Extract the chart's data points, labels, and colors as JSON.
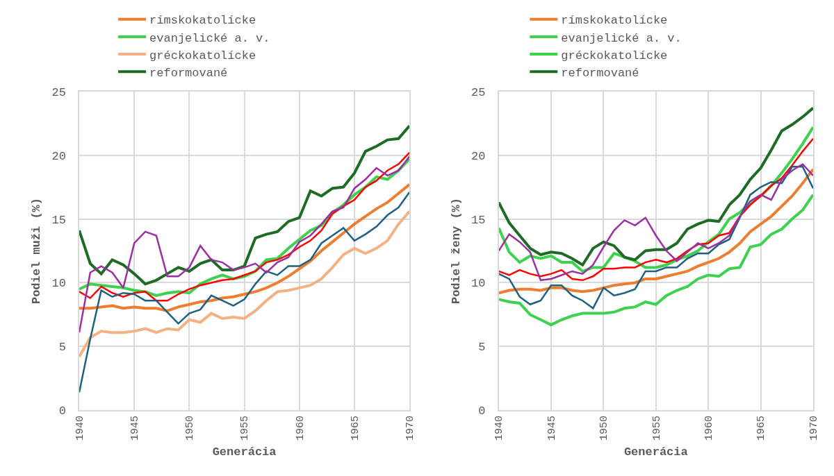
{
  "chart_data": [
    {
      "type": "line",
      "xlabel": "Generácia",
      "ylabel": "Podiel muži (%)",
      "xlim": [
        1940,
        1970
      ],
      "xticks": [
        1940,
        1945,
        1950,
        1955,
        1960,
        1965,
        1970
      ],
      "ylim": [
        0,
        25
      ],
      "yticks": [
        0,
        5,
        10,
        15,
        20,
        25
      ],
      "grid": true,
      "legend": "top",
      "x": [
        1940,
        1941,
        1942,
        1943,
        1944,
        1945,
        1946,
        1947,
        1948,
        1949,
        1950,
        1951,
        1952,
        1953,
        1954,
        1955,
        1956,
        1957,
        1958,
        1959,
        1960,
        1961,
        1962,
        1963,
        1964,
        1965,
        1966,
        1967,
        1968,
        1969,
        1970
      ],
      "series": [
        {
          "name": "rímskokatolícke",
          "color": "#ed7d31",
          "values": [
            8.0,
            8.0,
            8.1,
            8.2,
            8.0,
            8.1,
            8.0,
            8.0,
            7.8,
            8.1,
            8.3,
            8.5,
            8.6,
            8.8,
            8.9,
            9.1,
            9.3,
            9.6,
            10.0,
            10.5,
            11.1,
            11.7,
            12.5,
            13.2,
            13.9,
            14.6,
            15.2,
            15.8,
            16.3,
            17.0,
            17.7
          ]
        },
        {
          "name": "evanjelické a. v.",
          "color": "#3ed14f",
          "values": [
            9.5,
            9.9,
            9.8,
            9.7,
            9.6,
            9.4,
            9.3,
            9.0,
            9.2,
            9.3,
            9.2,
            9.9,
            10.3,
            10.6,
            10.3,
            10.5,
            10.9,
            11.8,
            11.9,
            12.7,
            13.4,
            14.1,
            14.5,
            15.5,
            16.1,
            16.9,
            17.5,
            18.3,
            18.1,
            18.8,
            19.7
          ]
        },
        {
          "name": "gréckokatolícke",
          "color": "#f4b183",
          "values": [
            4.2,
            5.7,
            6.2,
            6.1,
            6.1,
            6.2,
            6.4,
            6.1,
            6.4,
            6.3,
            7.1,
            6.9,
            7.6,
            7.2,
            7.3,
            7.2,
            7.8,
            8.6,
            9.3,
            9.4,
            9.6,
            9.8,
            10.3,
            11.2,
            12.2,
            12.7,
            12.3,
            12.7,
            13.3,
            14.6,
            15.6
          ]
        },
        {
          "name": "reformované",
          "color": "#1e6b25",
          "values": [
            14.1,
            11.5,
            10.7,
            11.8,
            11.4,
            10.7,
            9.9,
            10.2,
            10.7,
            11.2,
            10.9,
            11.5,
            11.8,
            11.0,
            11.0,
            11.3,
            13.5,
            13.8,
            14.0,
            14.8,
            15.1,
            17.2,
            16.8,
            17.4,
            17.5,
            18.6,
            20.3,
            20.7,
            21.2,
            21.3,
            22.3
          ]
        },
        {
          "color": "#ff0000",
          "values": [
            9.3,
            8.8,
            9.7,
            9.2,
            8.9,
            9.2,
            9.3,
            8.6,
            8.6,
            9.1,
            9.5,
            9.8,
            10.0,
            10.2,
            10.3,
            10.6,
            10.9,
            11.6,
            11.8,
            12.2,
            12.8,
            13.3,
            14.1,
            15.4,
            16.0,
            16.5,
            17.5,
            18.0,
            18.8,
            19.3,
            20.2
          ]
        },
        {
          "color": "#1f5f7f",
          "values": [
            1.4,
            5.6,
            9.4,
            8.9,
            9.2,
            9.1,
            8.6,
            8.6,
            7.7,
            6.8,
            7.6,
            7.9,
            9.0,
            8.6,
            8.2,
            8.7,
            9.9,
            10.9,
            10.6,
            11.3,
            11.3,
            11.8,
            13.1,
            13.7,
            14.3,
            13.3,
            13.8,
            14.4,
            15.3,
            15.9,
            17.1
          ]
        },
        {
          "color": "#9b30a0",
          "values": [
            6.1,
            10.8,
            11.3,
            10.8,
            9.6,
            13.1,
            14.0,
            13.7,
            10.5,
            10.5,
            11.2,
            12.9,
            11.8,
            11.6,
            11.0,
            11.2,
            11.5,
            10.8,
            11.6,
            12.0,
            13.2,
            13.7,
            14.6,
            15.6,
            15.9,
            17.4,
            18.1,
            19.0,
            18.4,
            18.8,
            19.9
          ]
        }
      ]
    },
    {
      "type": "line",
      "xlabel": "Generácia",
      "ylabel": "Podiel ženy (%)",
      "xlim": [
        1940,
        1970
      ],
      "xticks": [
        1940,
        1945,
        1950,
        1955,
        1960,
        1965,
        1970
      ],
      "ylim": [
        0,
        25
      ],
      "yticks": [
        0,
        5,
        10,
        15,
        20,
        25
      ],
      "grid": true,
      "legend": "top",
      "x": [
        1940,
        1941,
        1942,
        1943,
        1944,
        1945,
        1946,
        1947,
        1948,
        1949,
        1950,
        1951,
        1952,
        1953,
        1954,
        1955,
        1956,
        1957,
        1958,
        1959,
        1960,
        1961,
        1962,
        1963,
        1964,
        1965,
        1966,
        1967,
        1968,
        1969,
        1970
      ],
      "series": [
        {
          "name": "rímskokatolícke",
          "color": "#ed7d31",
          "values": [
            9.2,
            9.4,
            9.5,
            9.5,
            9.4,
            9.6,
            9.6,
            9.4,
            9.3,
            9.4,
            9.6,
            9.8,
            9.9,
            10.0,
            10.3,
            10.3,
            10.5,
            10.7,
            10.9,
            11.3,
            11.6,
            11.9,
            12.4,
            13.1,
            14.0,
            14.6,
            15.2,
            16.0,
            16.8,
            17.8,
            18.9
          ]
        },
        {
          "name": "evanjelické a. v.",
          "color": "#3ed14f",
          "values": [
            14.3,
            12.4,
            11.6,
            12.1,
            11.9,
            12.1,
            11.6,
            11.6,
            10.9,
            11.2,
            11.2,
            12.3,
            12.0,
            11.7,
            11.2,
            11.2,
            11.4,
            11.8,
            12.1,
            12.5,
            13.2,
            13.8,
            15.0,
            15.5,
            16.3,
            16.8,
            17.6,
            18.6,
            19.7,
            20.9,
            22.2
          ]
        },
        {
          "name": "gréckokatolícke",
          "color": "#3ed14f",
          "values": [
            8.7,
            8.5,
            8.4,
            7.5,
            7.1,
            6.7,
            7.1,
            7.4,
            7.6,
            7.6,
            7.6,
            7.7,
            8.0,
            8.1,
            8.5,
            8.3,
            9.0,
            9.4,
            9.7,
            10.3,
            10.6,
            10.5,
            11.1,
            11.2,
            12.8,
            13.0,
            13.8,
            14.2,
            15.0,
            15.7,
            16.9
          ]
        },
        {
          "name": "reformované",
          "color": "#1e6b25",
          "values": [
            16.3,
            14.7,
            13.7,
            12.7,
            12.2,
            12.4,
            12.3,
            11.9,
            11.4,
            12.7,
            13.2,
            12.9,
            12.0,
            11.8,
            12.5,
            12.6,
            12.6,
            13.1,
            14.2,
            14.6,
            14.9,
            14.8,
            16.1,
            16.9,
            18.1,
            19.0,
            20.4,
            21.9,
            22.4,
            23.0,
            23.7
          ]
        },
        {
          "color": "#ff0000",
          "values": [
            10.9,
            10.6,
            11.0,
            10.7,
            10.5,
            10.7,
            11.0,
            10.3,
            10.2,
            10.5,
            11.1,
            11.1,
            11.2,
            11.2,
            11.6,
            11.8,
            11.6,
            11.9,
            12.5,
            13.0,
            13.1,
            13.7,
            13.9,
            15.2,
            16.1,
            16.8,
            17.6,
            18.2,
            19.2,
            20.3,
            21.3
          ]
        },
        {
          "color": "#1f5f7f",
          "values": [
            10.7,
            10.3,
            8.9,
            8.3,
            8.6,
            9.8,
            9.8,
            9.0,
            8.6,
            8.0,
            9.6,
            9.0,
            9.2,
            9.5,
            10.9,
            10.9,
            11.2,
            11.2,
            11.9,
            12.3,
            12.3,
            13.0,
            13.4,
            15.1,
            16.9,
            17.5,
            17.9,
            17.8,
            19.1,
            19.1,
            17.4
          ]
        },
        {
          "color": "#9b30a0",
          "values": [
            12.5,
            13.8,
            13.2,
            12.4,
            10.2,
            10.3,
            10.6,
            10.9,
            10.7,
            11.4,
            12.8,
            14.1,
            14.9,
            14.5,
            15.1,
            13.7,
            12.5,
            11.7,
            12.4,
            13.1,
            12.7,
            13.1,
            13.7,
            15.2,
            16.4,
            16.9,
            16.5,
            18.1,
            18.8,
            19.3,
            18.4
          ]
        }
      ]
    }
  ]
}
